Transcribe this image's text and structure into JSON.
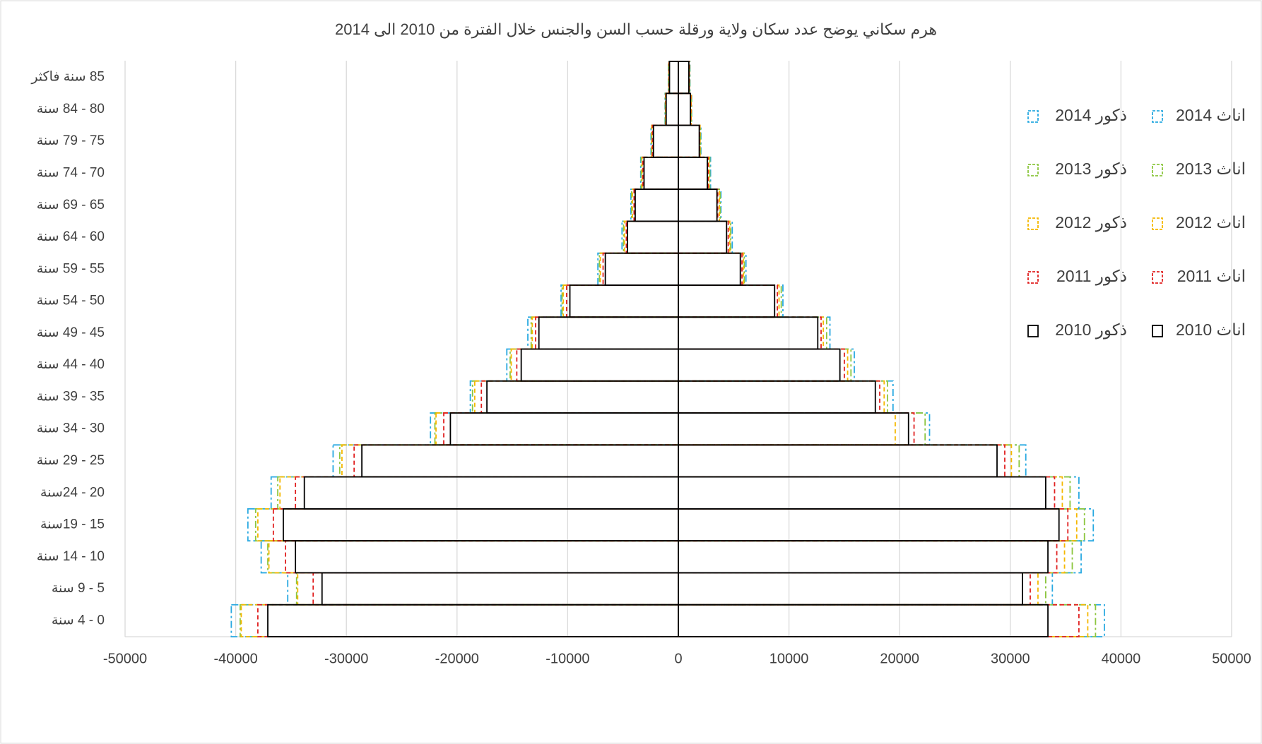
{
  "chart_data": {
    "type": "pyramid",
    "title": "هرم سكاني يوضح عدد سكان ولاية ورقلة حسب السن والجنس خلال الفترة من 2010 الى 2014",
    "categories": [
      "0 - 4 سنة",
      "5 - 9 سنة",
      "10 - 14 سنة",
      "15 - 19سنة",
      "20 - 24سنة",
      "25 - 29 سنة",
      "30 - 34 سنة",
      "35 - 39 سنة",
      "40 - 44 سنة",
      "45 - 49 سنة",
      "50 - 54 سنة",
      "55 - 59 سنة",
      "60 - 64 سنة",
      "65 - 69 سنة",
      "70 - 74 سنة",
      "75 - 79 سنة",
      "80 - 84 سنة",
      "85 سنة فاكثر"
    ],
    "series": [
      {
        "name": "ذكور 2010",
        "color": "#000000",
        "dash": "solid",
        "values": [
          -37100,
          -32200,
          -34600,
          -35700,
          -33800,
          -28600,
          -20600,
          -17300,
          -14200,
          -12600,
          -9800,
          -6600,
          -4600,
          -3900,
          -3100,
          -2250,
          -1100,
          -800
        ]
      },
      {
        "name": "ذكور 2011",
        "color": "#e02020",
        "dash": "dashed",
        "values": [
          -38000,
          -33000,
          -35500,
          -36600,
          -34600,
          -29300,
          -21200,
          -17800,
          -14600,
          -12900,
          -10100,
          -6800,
          -4700,
          -4000,
          -3200,
          -2330,
          -1120,
          -830
        ]
      },
      {
        "name": "ذكور 2012",
        "color": "#f5b800",
        "dash": "dashed",
        "values": [
          -39500,
          -34400,
          -37000,
          -38000,
          -36000,
          -30400,
          -21900,
          -18400,
          -15100,
          -13200,
          -10400,
          -7050,
          -4870,
          -4150,
          -3270,
          -2400,
          -1160,
          -860
        ]
      },
      {
        "name": "ذكور 2013",
        "color": "#8cc63f",
        "dash": "dashdot",
        "values": [
          -39600,
          -34500,
          -37100,
          -38200,
          -36200,
          -30600,
          -22000,
          -18600,
          -15200,
          -13300,
          -10500,
          -7130,
          -4950,
          -4220,
          -3350,
          -2420,
          -1180,
          -880
        ]
      },
      {
        "name": "ذكور 2014",
        "color": "#29a9e1",
        "dash": "dashdot",
        "values": [
          -40400,
          -35300,
          -37700,
          -38900,
          -36800,
          -31200,
          -22400,
          -18800,
          -15500,
          -13600,
          -10600,
          -7270,
          -5090,
          -4290,
          -3400,
          -2470,
          -1200,
          -900
        ]
      },
      {
        "name": "اناث 2010",
        "color": "#000000",
        "dash": "solid",
        "values": [
          33400,
          31100,
          33400,
          34400,
          33200,
          28800,
          20800,
          17800,
          14600,
          12600,
          8700,
          5600,
          4360,
          3490,
          2620,
          1890,
          1090,
          950
        ]
      },
      {
        "name": "اناث 2011",
        "color": "#e02020",
        "dash": "dashed",
        "values": [
          36200,
          31800,
          34200,
          35200,
          34000,
          29500,
          21300,
          18200,
          15000,
          12900,
          8950,
          5750,
          4510,
          3560,
          2690,
          1920,
          1120,
          980
        ]
      },
      {
        "name": "اناث 2012",
        "color": "#f5b800",
        "dash": "dashed",
        "values": [
          37000,
          32500,
          34900,
          36000,
          34700,
          30100,
          19600,
          18600,
          15300,
          13100,
          9100,
          5890,
          4650,
          3710,
          2760,
          1960,
          1160,
          1000
        ]
      },
      {
        "name": "اناث 2013",
        "color": "#8cc63f",
        "dash": "dashdot",
        "values": [
          37700,
          33200,
          35600,
          36700,
          35400,
          30800,
          22300,
          18900,
          15600,
          13400,
          9300,
          5960,
          4730,
          3780,
          2840,
          2000,
          1180,
          1030
        ]
      },
      {
        "name": "اناث 2014",
        "color": "#29a9e1",
        "dash": "dashdot",
        "values": [
          38500,
          33800,
          36400,
          37500,
          36200,
          31400,
          22700,
          19400,
          15900,
          13700,
          9450,
          6110,
          4870,
          3850,
          2910,
          2040,
          1200,
          1050
        ]
      }
    ],
    "xlim": [
      -50000,
      50000
    ],
    "xticks": [
      -50000,
      -40000,
      -30000,
      -20000,
      -10000,
      0,
      10000,
      20000,
      30000,
      40000,
      50000
    ],
    "grid": true,
    "legend": "right"
  }
}
